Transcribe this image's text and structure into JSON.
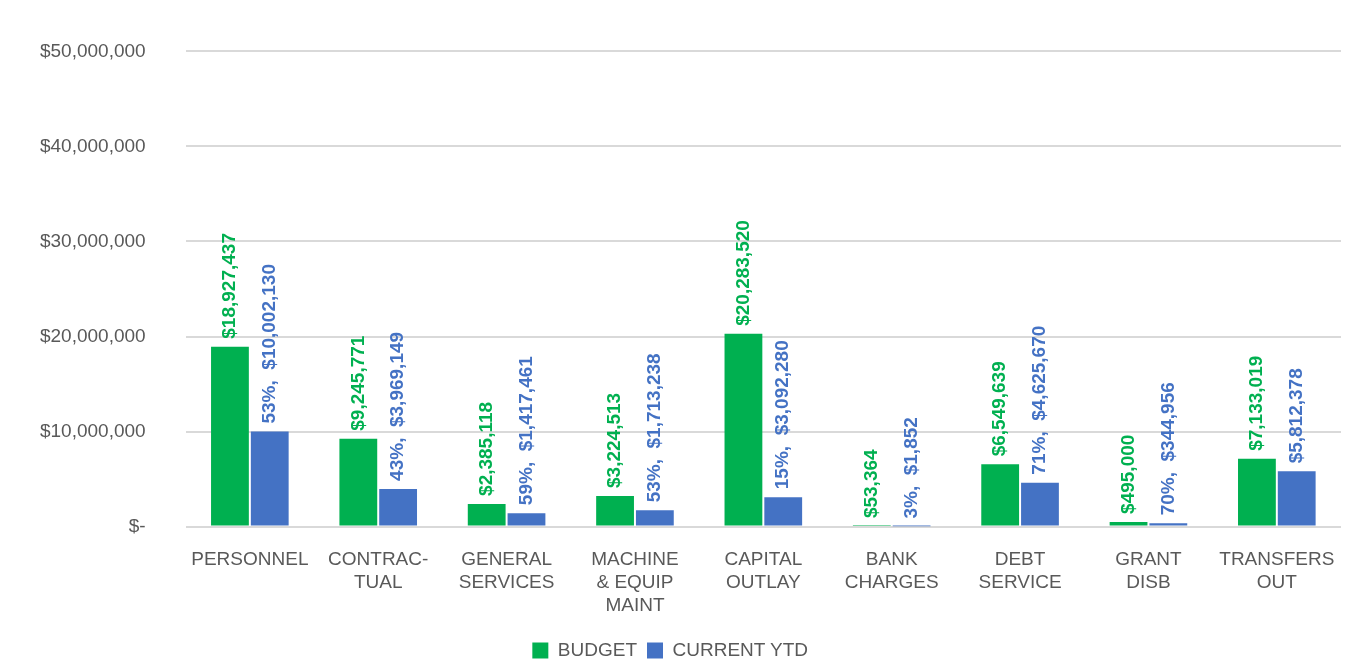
{
  "chart_data": {
    "type": "bar",
    "categories": [
      "PERSONNEL",
      "CONTRAC- TUAL",
      "GENERAL SERVICES",
      "MACHINE & EQUIP MAINT",
      "CAPITAL OUTLAY",
      "BANK CHARGES",
      "DEBT SERVICE",
      "GRANT DISB",
      "TRANSFERS OUT"
    ],
    "series": [
      {
        "name": "BUDGET",
        "color": "#00b050",
        "values": [
          18927437,
          9245771,
          2385118,
          3224513,
          20283520,
          53364,
          6549639,
          495000,
          7133019
        ],
        "value_labels": [
          "$18,927,437",
          "$9,245,771",
          "$2,385,118",
          "$3,224,513",
          "$20,283,520",
          "$53,364",
          "$6,549,639",
          "$495,000",
          "$7,133,019"
        ]
      },
      {
        "name": "CURRENT YTD",
        "color": "#4472c4",
        "values": [
          10002130,
          3969149,
          1417461,
          1713238,
          3092280,
          1852,
          4625670,
          344956,
          5812378
        ],
        "value_labels": [
          "53%,  $10,002,130",
          "43%,  $3,969,149",
          "59%,  $1,417,461",
          "53%,  $1,713,238",
          "15%,  $3,092,280",
          "3%,  $1,852",
          "71%,  $4,625,670",
          "70%,  $344,956",
          "$5,812,378"
        ]
      }
    ],
    "ylim": [
      0,
      50000000
    ],
    "yticks": [
      {
        "value": 0,
        "label": "$-"
      },
      {
        "value": 10000000,
        "label": "$10,000,000"
      },
      {
        "value": 20000000,
        "label": "$20,000,000"
      },
      {
        "value": 30000000,
        "label": "$30,000,000"
      },
      {
        "value": 40000000,
        "label": "$40,000,000"
      },
      {
        "value": 50000000,
        "label": "$50,000,000"
      }
    ],
    "grid": "y",
    "legend": "bottom"
  }
}
